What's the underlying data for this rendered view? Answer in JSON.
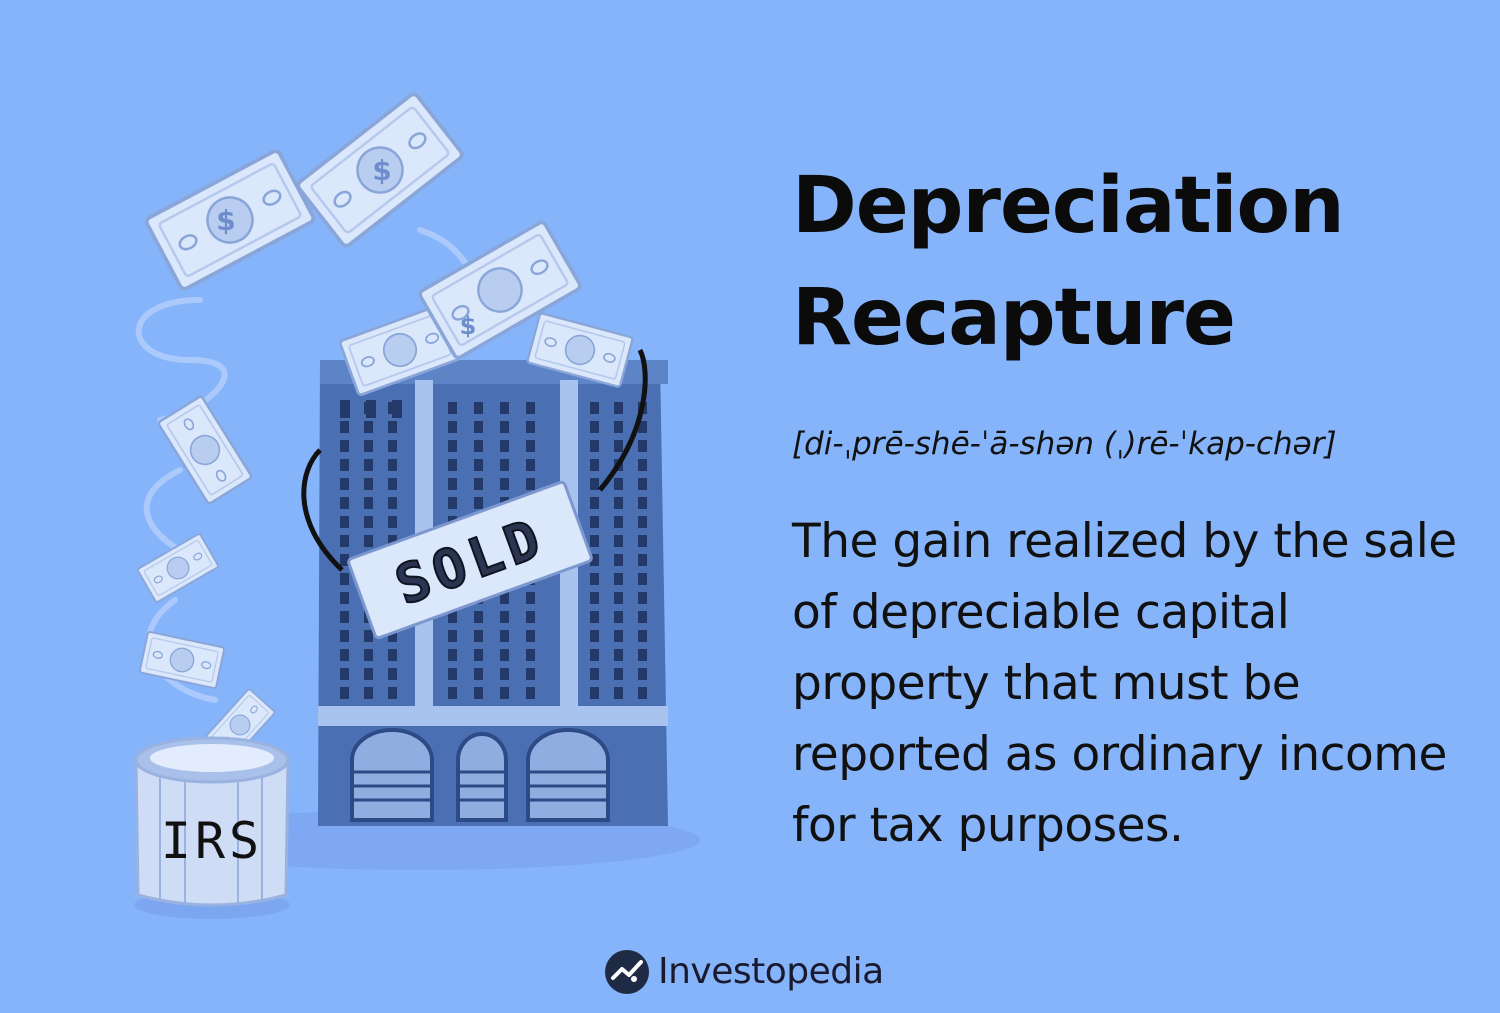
{
  "title": {
    "line1": "Depreciation",
    "line2": "Recapture"
  },
  "pronunciation": "[di-ˌprē-shē-ˈā-shən (ˌ)rē-ˈkap-chər]",
  "definition": "The gain realized by the sale of depreciable capital property that must be reported as ordinary income for tax purposes.",
  "illustration": {
    "sign_text": "SOLD",
    "bucket_text": "IRS",
    "bill_symbol": "$"
  },
  "brand": {
    "name": "Investopedia",
    "logo_icon": "investopedia-logo-icon"
  },
  "colors": {
    "background": "#86b4fb",
    "building": "#4a6fb3",
    "bill": "#dbe7fb"
  }
}
